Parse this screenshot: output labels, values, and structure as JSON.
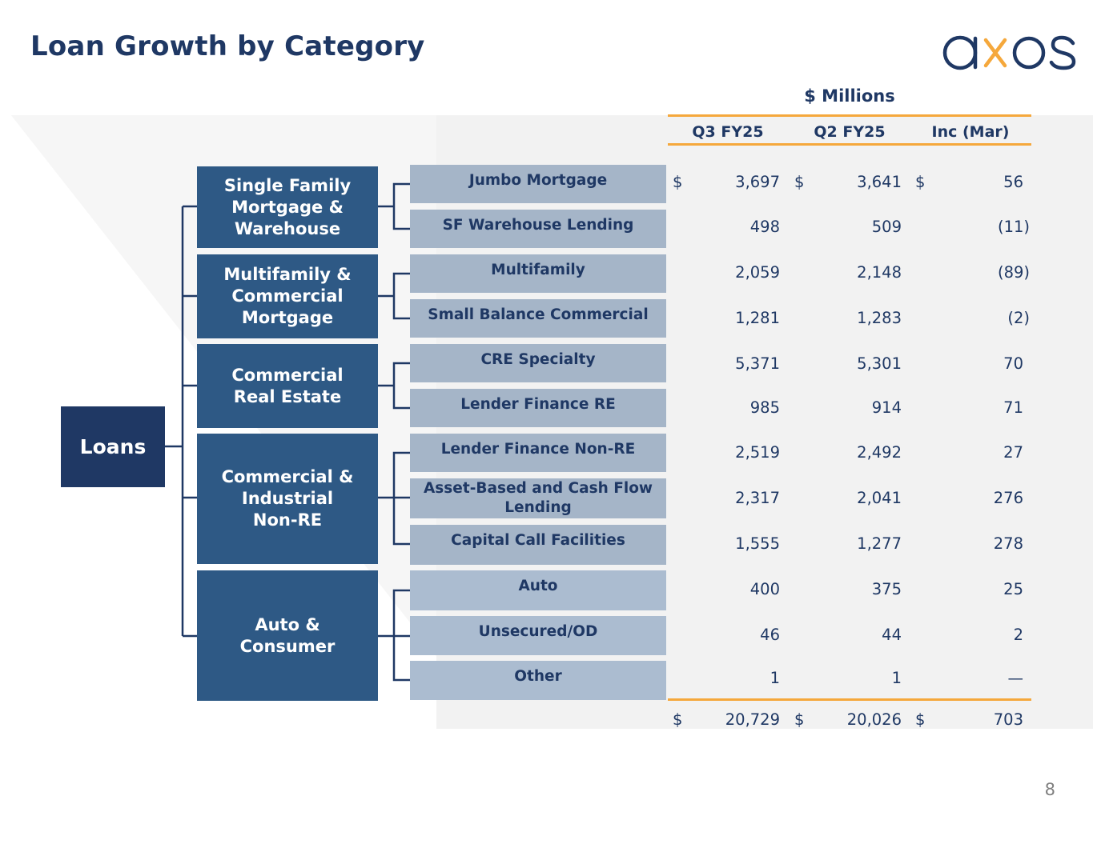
{
  "title": "Loan Growth by Category",
  "logo_text": "axos",
  "page_number": "8",
  "colors": {
    "navy": "#1f3864",
    "category": "#2e5985",
    "orange": "#f5a83c"
  },
  "root_label": "Loans",
  "categories": [
    {
      "label": "Single Family\nMortgage &\nWarehouse"
    },
    {
      "label": "Multifamily &\nCommercial\nMortgage"
    },
    {
      "label": "Commercial\nReal Estate"
    },
    {
      "label": "Commercial &\nIndustrial\nNon-RE"
    },
    {
      "label": "Auto &\nConsumer"
    }
  ],
  "table": {
    "unit_label": "$ Millions",
    "columns": [
      "Q3 FY25",
      "Q2 FY25",
      "Inc (Mar)"
    ],
    "rows": [
      {
        "label": "Jumbo Mortgage",
        "q3": "3,697",
        "q2": "3,641",
        "inc": "56",
        "dollar": "$"
      },
      {
        "label": "SF Warehouse Lending",
        "q3": "498",
        "q2": "509",
        "inc": "(11)"
      },
      {
        "label": "Multifamily",
        "q3": "2,059",
        "q2": "2,148",
        "inc": "(89)"
      },
      {
        "label": "Small Balance Commercial",
        "q3": "1,281",
        "q2": "1,283",
        "inc": "(2)"
      },
      {
        "label": "CRE Specialty",
        "q3": "5,371",
        "q2": "5,301",
        "inc": "70"
      },
      {
        "label": "Lender Finance RE",
        "q3": "985",
        "q2": "914",
        "inc": "71"
      },
      {
        "label": "Lender Finance Non-RE",
        "q3": "2,519",
        "q2": "2,492",
        "inc": "27"
      },
      {
        "label": "Asset-Based and Cash Flow\nLending",
        "q3": "2,317",
        "q2": "2,041",
        "inc": "276"
      },
      {
        "label": "Capital Call Facilities",
        "q3": "1,555",
        "q2": "1,277",
        "inc": "278"
      },
      {
        "label": "Auto",
        "q3": "400",
        "q2": "375",
        "inc": "25"
      },
      {
        "label": "Unsecured/OD",
        "q3": "46",
        "q2": "44",
        "inc": "2"
      },
      {
        "label": "Other",
        "q3": "1",
        "q2": "1",
        "inc": "—"
      }
    ],
    "total": {
      "dollar": "$",
      "q3": "20,729",
      "q2": "20,026",
      "inc": "703"
    }
  }
}
